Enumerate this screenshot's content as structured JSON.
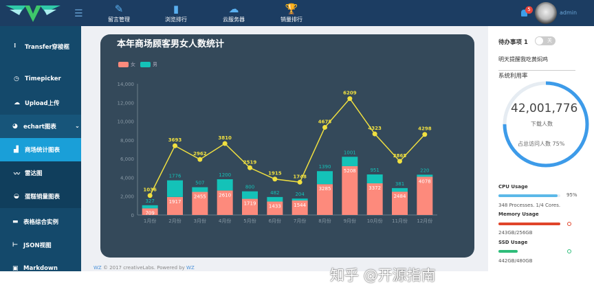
{
  "header": {
    "nav": [
      {
        "label": "留言管理",
        "icon": "edit-icon"
      },
      {
        "label": "浏览排行",
        "icon": "bar-chart-icon"
      },
      {
        "label": "云服务器",
        "icon": "cloud-icon"
      },
      {
        "label": "销量排行",
        "icon": "trophy-icon"
      }
    ],
    "badge": "5",
    "user": "admin"
  },
  "sidebar": {
    "items": [
      {
        "label": "Transfer穿梭框",
        "icon": "grip-icon"
      },
      {
        "label": "Timepicker",
        "icon": "clock-icon"
      },
      {
        "label": "Upload上传",
        "icon": "cloud-upload-icon"
      },
      {
        "label": "echart图表",
        "icon": "pie-icon"
      },
      {
        "label": "商场统计图表",
        "icon": "bar-chart-icon"
      },
      {
        "label": "雷达图",
        "icon": "line-chart-icon"
      },
      {
        "label": "蛋糕销量图表",
        "icon": "cake-icon"
      },
      {
        "label": "表格综合实例",
        "icon": "table-icon"
      },
      {
        "label": "JSON视图",
        "icon": "tree-icon"
      },
      {
        "label": "Markdown",
        "icon": "markdown-icon"
      }
    ]
  },
  "footer": {
    "brand": "WZ",
    "text": " © 2017 creativeLabs. Powered by ",
    "brand2": "WZ"
  },
  "right": {
    "todo": "待办事项 1",
    "toggle": "关",
    "reminder": "明天提醒我吃黄焖鸡",
    "usage_title": "系统利用率",
    "big_number": "42,001,776",
    "big_label": "下载人数",
    "percent_text": "占总访问人数 75%",
    "ring_percent": 75,
    "cpu": {
      "label": "CPU Usage",
      "value": "95%",
      "percent": 95,
      "detail": "348 Processes. 1/4 Cores."
    },
    "memory": {
      "label": "Memory Usage",
      "percent": 95,
      "detail": "243GB/256GB"
    },
    "ssd": {
      "label": "SSD Usage",
      "detail": "442GB/480GB"
    },
    "colors": {
      "ring": "#3d9be9",
      "cpu": "#5bb8e8",
      "memory": "#e0442a",
      "ssd": "#2ebd7a"
    }
  },
  "watermark": "知乎 @开源指南",
  "chart_data": {
    "type": "bar",
    "title": "本年商场顾客男女人数统计",
    "categories": [
      "1月份",
      "2月份",
      "3月份",
      "4月份",
      "5月份",
      "6月份",
      "7月份",
      "8月份",
      "9月份",
      "10月份",
      "11月份",
      "12月份"
    ],
    "series": [
      {
        "name": "女",
        "type": "bar",
        "stack": "total",
        "color": "#fd8a7c",
        "values": [
          709,
          1917,
          2455,
          2610,
          1719,
          1433,
          1544,
          3285,
          5208,
          3372,
          2484,
          4078
        ]
      },
      {
        "name": "男",
        "type": "bar",
        "stack": "total",
        "color": "#14c2b8",
        "values": [
          327,
          1776,
          507,
          1200,
          800,
          482,
          204,
          1390,
          1001,
          951,
          381,
          220
        ]
      },
      {
        "type": "line",
        "color": "#f0e040",
        "values": [
          1036,
          3693,
          2962,
          3810,
          2519,
          1915,
          1748,
          4675,
          6209,
          4323,
          2865,
          4298
        ]
      }
    ],
    "yticks": [
      "0",
      "2,000",
      "4,000",
      "6,000",
      "8,000",
      "10,000",
      "12,000",
      "14,000"
    ],
    "ylim": [
      0,
      14000
    ],
    "legend": "top-left",
    "grid": false
  }
}
